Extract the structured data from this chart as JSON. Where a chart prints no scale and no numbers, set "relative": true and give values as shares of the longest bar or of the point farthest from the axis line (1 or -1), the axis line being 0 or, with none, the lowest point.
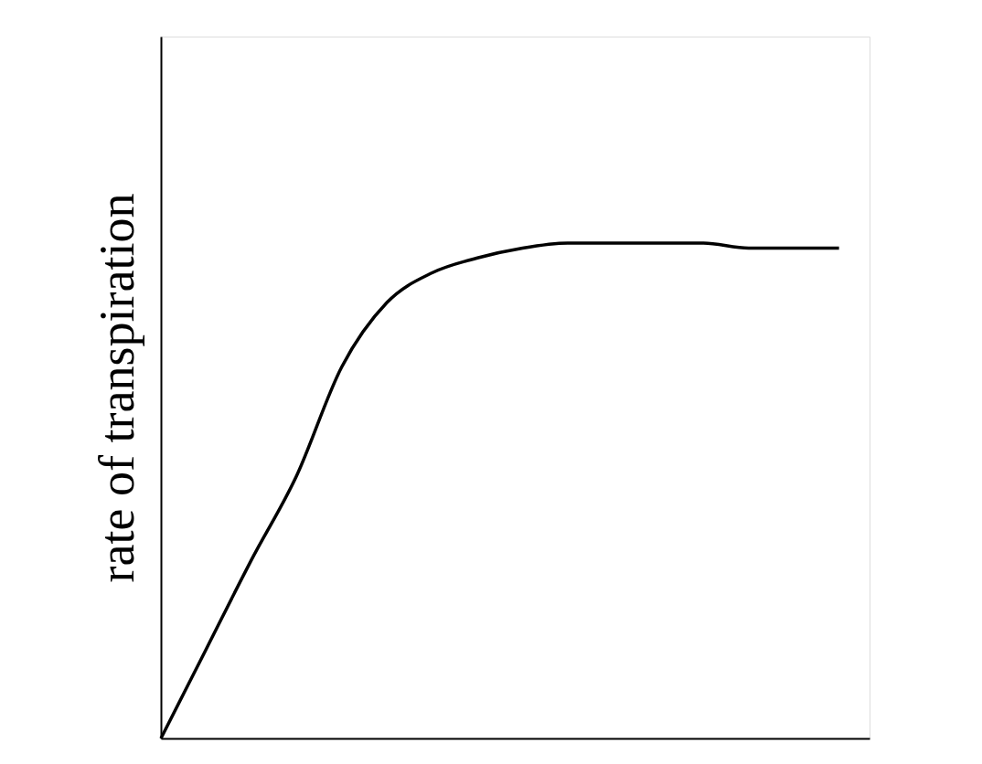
{
  "chart_data": {
    "type": "line",
    "ylabel": "rate of transpiration",
    "relative": true,
    "tick_labels": false,
    "grid": false,
    "marker": "none",
    "line_style": "solid",
    "categories": [
      null,
      null,
      null,
      null,
      null,
      null,
      null,
      null,
      null,
      null,
      null,
      null,
      null,
      null,
      null,
      null
    ],
    "series": [
      {
        "color": "#000000",
        "values": [
          0,
          0.18,
          0.36,
          0.53,
          0.75,
          0.88,
          0.94,
          0.97,
          0.99,
          1.0,
          1.0,
          1.0,
          1.0,
          0.99,
          0.99,
          0.99
        ]
      }
    ]
  }
}
